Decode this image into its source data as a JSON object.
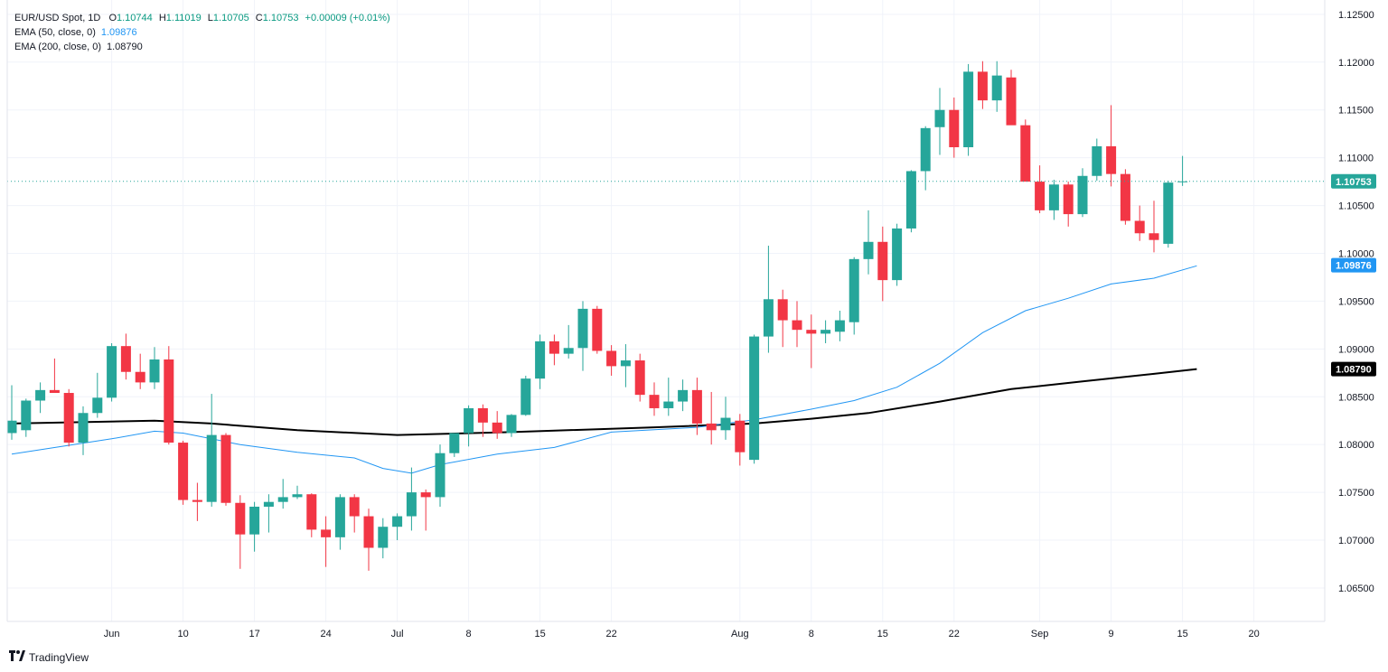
{
  "header": {
    "symbol": "EUR/USD Spot, 1D",
    "open_label": "O",
    "open": "1.10744",
    "high_label": "H",
    "high": "1.11019",
    "low_label": "L",
    "low": "1.10705",
    "close_label": "C",
    "close": "1.10753",
    "change": "+0.00009 (+0.01%)",
    "ema50_label": "EMA (50, close, 0)",
    "ema50_value": "1.09876",
    "ema200_label": "EMA (200, close, 0)",
    "ema200_value": "1.08790"
  },
  "brand": {
    "name": "TradingView",
    "icon": "tradingview-logo-icon"
  },
  "colors": {
    "up": "#26a69a",
    "down": "#f23645",
    "ema50": "#2196f3",
    "ema200": "#000000",
    "grid": "#f0f3fa",
    "text": "#131722",
    "price_line": "#26a69a"
  },
  "chart_data": {
    "type": "candlestick",
    "title": "EUR/USD Spot, 1D",
    "ylim": [
      1.0615,
      1.1265
    ],
    "y_ticks": [
      "1.06500",
      "1.07000",
      "1.07500",
      "1.08000",
      "1.08500",
      "1.09000",
      "1.09500",
      "1.10000",
      "1.10500",
      "1.11000",
      "1.11500",
      "1.12000",
      "1.12500"
    ],
    "x_ticks": [
      {
        "label": "Jun",
        "index": 7
      },
      {
        "label": "10",
        "index": 12
      },
      {
        "label": "17",
        "index": 17
      },
      {
        "label": "24",
        "index": 22
      },
      {
        "label": "Jul",
        "index": 27
      },
      {
        "label": "8",
        "index": 32
      },
      {
        "label": "15",
        "index": 37
      },
      {
        "label": "22",
        "index": 42
      },
      {
        "label": "Aug",
        "index": 51
      },
      {
        "label": "8",
        "index": 56
      },
      {
        "label": "15",
        "index": 61
      },
      {
        "label": "22",
        "index": 66
      },
      {
        "label": "Sep",
        "index": 72
      },
      {
        "label": "9",
        "index": 77
      },
      {
        "label": "15",
        "index": 82
      },
      {
        "label": "20",
        "index": 87
      }
    ],
    "price_labels": [
      {
        "name": "last-price",
        "value": "1.10753",
        "color": "#26a69a"
      },
      {
        "name": "ema50",
        "value": "1.09876",
        "color": "#2196f3"
      },
      {
        "name": "ema200",
        "value": "1.08790",
        "color": "#000000"
      }
    ],
    "candles": [
      [
        1.0812,
        1.0862,
        1.0805,
        1.0825
      ],
      [
        1.0815,
        1.0848,
        1.0808,
        1.0846
      ],
      [
        1.0846,
        1.0865,
        1.0833,
        1.0857
      ],
      [
        1.0857,
        1.089,
        1.0855,
        1.0854
      ],
      [
        1.0854,
        1.0858,
        1.0798,
        1.0802
      ],
      [
        1.0802,
        1.084,
        1.0789,
        1.0833
      ],
      [
        1.0833,
        1.0875,
        1.0828,
        1.0849
      ],
      [
        1.0849,
        1.0906,
        1.0845,
        1.0903
      ],
      [
        1.0903,
        1.0916,
        1.0868,
        1.0876
      ],
      [
        1.0876,
        1.0895,
        1.0858,
        1.0865
      ],
      [
        1.0865,
        1.0902,
        1.0858,
        1.0889
      ],
      [
        1.0889,
        1.0903,
        1.08,
        1.0802
      ],
      [
        1.0802,
        1.0804,
        1.0737,
        1.0742
      ],
      [
        1.0742,
        1.076,
        1.072,
        1.074
      ],
      [
        1.074,
        1.0853,
        1.0735,
        1.081
      ],
      [
        1.081,
        1.0812,
        1.0736,
        1.0739
      ],
      [
        1.0739,
        1.0747,
        1.067,
        1.0706
      ],
      [
        1.0706,
        1.074,
        1.0688,
        1.0735
      ],
      [
        1.0735,
        1.0748,
        1.0708,
        1.074
      ],
      [
        1.074,
        1.0764,
        1.0733,
        1.0745
      ],
      [
        1.0745,
        1.0757,
        1.0743,
        1.0748
      ],
      [
        1.0748,
        1.0749,
        1.0703,
        1.0711
      ],
      [
        1.0711,
        1.0725,
        1.0672,
        1.0703
      ],
      [
        1.0703,
        1.0748,
        1.069,
        1.0745
      ],
      [
        1.0745,
        1.0748,
        1.0708,
        1.0725
      ],
      [
        1.0725,
        1.0733,
        1.0668,
        1.0692
      ],
      [
        1.0692,
        1.0723,
        1.0681,
        1.0714
      ],
      [
        1.0714,
        1.0728,
        1.07,
        1.0725
      ],
      [
        1.0725,
        1.0776,
        1.071,
        1.075
      ],
      [
        1.075,
        1.0753,
        1.071,
        1.0745
      ],
      [
        1.0745,
        1.08,
        1.0735,
        1.0791
      ],
      [
        1.0791,
        1.081,
        1.0787,
        1.0812
      ],
      [
        1.0812,
        1.0841,
        1.0798,
        1.0838
      ],
      [
        1.0838,
        1.0842,
        1.0808,
        1.0823
      ],
      [
        1.0823,
        1.0835,
        1.0806,
        1.0812
      ],
      [
        1.0812,
        1.0832,
        1.0808,
        1.0831
      ],
      [
        1.0831,
        1.0872,
        1.083,
        1.0869
      ],
      [
        1.0869,
        1.0915,
        1.0858,
        1.0908
      ],
      [
        1.0908,
        1.0915,
        1.0883,
        1.0895
      ],
      [
        1.0895,
        1.0925,
        1.089,
        1.0901
      ],
      [
        1.0901,
        1.095,
        1.0877,
        1.0942
      ],
      [
        1.0942,
        1.0945,
        1.0895,
        1.0898
      ],
      [
        1.0898,
        1.0904,
        1.0872,
        1.0882
      ],
      [
        1.0882,
        1.0905,
        1.086,
        1.0888
      ],
      [
        1.0888,
        1.0895,
        1.0845,
        1.0852
      ],
      [
        1.0852,
        1.0865,
        1.083,
        1.0838
      ],
      [
        1.0838,
        1.087,
        1.083,
        1.0845
      ],
      [
        1.0845,
        1.0868,
        1.0835,
        1.0857
      ],
      [
        1.0857,
        1.087,
        1.081,
        1.0822
      ],
      [
        1.0822,
        1.0855,
        1.08,
        1.0815
      ],
      [
        1.0815,
        1.085,
        1.0805,
        1.0828
      ],
      [
        1.0825,
        1.0832,
        1.0778,
        1.0792
      ],
      [
        1.0784,
        1.0915,
        1.078,
        1.0913
      ],
      [
        1.0913,
        1.1008,
        1.0896,
        1.0952
      ],
      [
        1.0952,
        1.0962,
        1.0902,
        1.093
      ],
      [
        1.093,
        1.095,
        1.0902,
        1.092
      ],
      [
        1.092,
        1.0936,
        1.088,
        1.0916
      ],
      [
        1.0916,
        1.093,
        1.0906,
        1.092
      ],
      [
        1.0918,
        1.094,
        1.0908,
        1.093
      ],
      [
        1.0928,
        1.0996,
        1.0915,
        1.0994
      ],
      [
        1.0994,
        1.1045,
        1.0978,
        1.1012
      ],
      [
        1.1012,
        1.1028,
        1.095,
        1.0972
      ],
      [
        1.0972,
        1.1031,
        1.0966,
        1.1026
      ],
      [
        1.1026,
        1.1087,
        1.1022,
        1.1086
      ],
      [
        1.1086,
        1.1133,
        1.1066,
        1.1131
      ],
      [
        1.1132,
        1.1173,
        1.1103,
        1.115
      ],
      [
        1.115,
        1.1163,
        1.11,
        1.1111
      ],
      [
        1.1111,
        1.1198,
        1.1102,
        1.119
      ],
      [
        1.119,
        1.1201,
        1.1151,
        1.116
      ],
      [
        1.116,
        1.1201,
        1.1148,
        1.1186
      ],
      [
        1.1184,
        1.1192,
        1.1135,
        1.1134
      ],
      [
        1.1134,
        1.114,
        1.1078,
        1.1075
      ],
      [
        1.1075,
        1.1092,
        1.1042,
        1.1045
      ],
      [
        1.1045,
        1.1077,
        1.1035,
        1.1072
      ],
      [
        1.1072,
        1.1075,
        1.1028,
        1.1041
      ],
      [
        1.1041,
        1.1089,
        1.1038,
        1.1081
      ],
      [
        1.1081,
        1.112,
        1.1076,
        1.1112
      ],
      [
        1.1112,
        1.1155,
        1.107,
        1.1083
      ],
      [
        1.1083,
        1.1088,
        1.103,
        1.1034
      ],
      [
        1.1034,
        1.105,
        1.1013,
        1.1021
      ],
      [
        1.1021,
        1.1055,
        1.1001,
        1.1014
      ],
      [
        1.101,
        1.1076,
        1.1006,
        1.1074
      ],
      [
        1.10744,
        1.11019,
        1.10705,
        1.10753
      ]
    ],
    "ema50": [
      [
        0,
        1.079
      ],
      [
        7,
        1.0806
      ],
      [
        10,
        1.0814
      ],
      [
        12,
        1.0812
      ],
      [
        16,
        1.08
      ],
      [
        20,
        1.0792
      ],
      [
        24,
        1.0786
      ],
      [
        26,
        1.0775
      ],
      [
        28,
        1.077
      ],
      [
        30,
        1.0779
      ],
      [
        34,
        1.079
      ],
      [
        38,
        1.0797
      ],
      [
        42,
        1.0813
      ],
      [
        48,
        1.0818
      ],
      [
        52,
        1.0826
      ],
      [
        56,
        1.0837
      ],
      [
        59,
        1.0846
      ],
      [
        62,
        1.086
      ],
      [
        65,
        1.0885
      ],
      [
        68,
        1.0917
      ],
      [
        71,
        1.094
      ],
      [
        74,
        1.0953
      ],
      [
        77,
        1.0968
      ],
      [
        80,
        1.0974
      ],
      [
        83,
        1.0987
      ]
    ],
    "ema200": [
      [
        0,
        1.0822
      ],
      [
        10,
        1.0825
      ],
      [
        14,
        1.0822
      ],
      [
        20,
        1.0815
      ],
      [
        27,
        1.081
      ],
      [
        35,
        1.0813
      ],
      [
        45,
        1.0818
      ],
      [
        52,
        1.0822
      ],
      [
        56,
        1.0827
      ],
      [
        60,
        1.0833
      ],
      [
        65,
        1.0845
      ],
      [
        70,
        1.0858
      ],
      [
        75,
        1.0866
      ],
      [
        80,
        1.0874
      ],
      [
        83,
        1.0879
      ]
    ],
    "last_price": 1.10753
  }
}
